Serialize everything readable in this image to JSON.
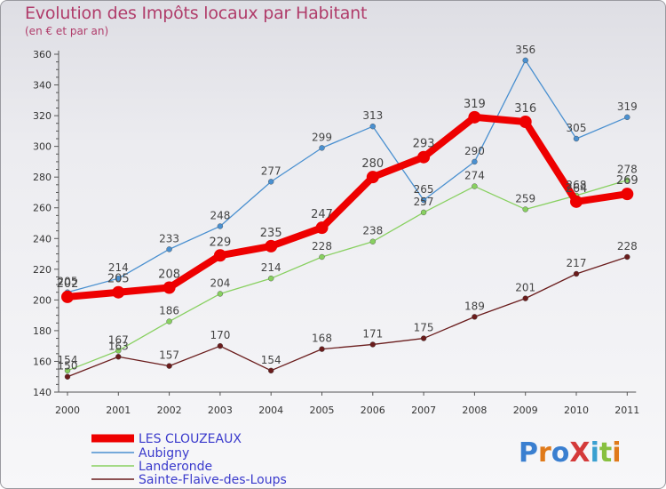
{
  "title": "Evolution des Impôts locaux par Habitant",
  "subtitle": "(en € et par an)",
  "logo_text": "ProXiti",
  "chart_data": {
    "type": "line",
    "title": "Evolution des Impôts locaux par Habitant",
    "subtitle": "(en € et par an)",
    "xlabel": "",
    "ylabel": "",
    "x": [
      2000,
      2001,
      2002,
      2003,
      2004,
      2005,
      2006,
      2007,
      2008,
      2009,
      2010,
      2011
    ],
    "ylim": [
      140,
      360
    ],
    "yticks": [
      140,
      160,
      180,
      200,
      220,
      240,
      260,
      280,
      300,
      320,
      340,
      360
    ],
    "grid": false,
    "legend_position": "bottom-left",
    "series": [
      {
        "name": "LES CLOUZEAUX",
        "color": "#ee0000",
        "values": [
          202,
          205,
          208,
          229,
          235,
          247,
          280,
          293,
          319,
          316,
          264,
          269
        ]
      },
      {
        "name": "Aubigny",
        "color": "#4a90d0",
        "values": [
          205,
          214,
          233,
          248,
          277,
          299,
          313,
          265,
          290,
          356,
          305,
          319
        ]
      },
      {
        "name": "Landeronde",
        "color": "#88d060",
        "values": [
          154,
          167,
          186,
          204,
          214,
          228,
          238,
          257,
          274,
          259,
          268,
          278
        ]
      },
      {
        "name": "Sainte-Flaive-des-Loups",
        "color": "#6a1c1c",
        "values": [
          150,
          163,
          157,
          170,
          154,
          168,
          171,
          175,
          189,
          201,
          217,
          228
        ]
      }
    ]
  }
}
